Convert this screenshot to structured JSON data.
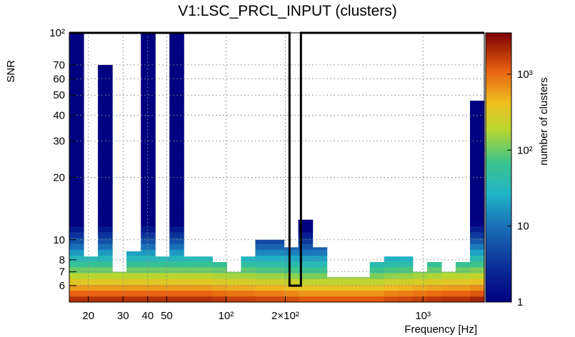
{
  "chart_data": {
    "type": "heatmap",
    "title": "V1:LSC_PRCL_INPUT (clusters)",
    "xlabel": "Frequency [Hz]",
    "ylabel": "SNR",
    "zlabel": "number of clusters",
    "x_scale": "log",
    "y_scale": "log",
    "z_scale": "log",
    "xlim": [
      16,
      2048
    ],
    "ylim": [
      5,
      100
    ],
    "zlim": [
      1,
      3500
    ],
    "grid": true,
    "colormap": "rainbow (dark blue to dark red)",
    "x_ticks": [
      {
        "value": 20,
        "label": "20"
      },
      {
        "value": 30,
        "label": "30"
      },
      {
        "value": 40,
        "label": "40"
      },
      {
        "value": 50,
        "label": "50"
      },
      {
        "value": 100,
        "label": "10²"
      },
      {
        "value": 200,
        "label": "2×10²"
      },
      {
        "value": 1000,
        "label": "10³"
      }
    ],
    "y_ticks": [
      {
        "value": 6,
        "label": "6"
      },
      {
        "value": 7,
        "label": "7"
      },
      {
        "value": 8,
        "label": "8"
      },
      {
        "value": 10,
        "label": "10"
      },
      {
        "value": 20,
        "label": "20"
      },
      {
        "value": 30,
        "label": "30"
      },
      {
        "value": 40,
        "label": "40"
      },
      {
        "value": 50,
        "label": "50"
      },
      {
        "value": 60,
        "label": "60"
      },
      {
        "value": 70,
        "label": "70"
      },
      {
        "value": 100,
        "label": "10²"
      }
    ],
    "z_ticks": [
      {
        "value": 1,
        "label": "1"
      },
      {
        "value": 10,
        "label": "10"
      },
      {
        "value": 100,
        "label": "10²"
      },
      {
        "value": 1000,
        "label": "10³"
      }
    ],
    "columns_snr_max": [
      100,
      8.3,
      70,
      7,
      8.8,
      100,
      8.3,
      100,
      8.3,
      8.3,
      7.8,
      7,
      8.3,
      10,
      10,
      9.2,
      12.5,
      9.2,
      6.6,
      6.6,
      6.6,
      7.8,
      8.3,
      8.3,
      7,
      7.8,
      7,
      7.8,
      47
    ],
    "columns_peak_count": [
      2600,
      2600,
      2600,
      2600,
      2600,
      2600,
      2600,
      2600,
      2600,
      2600,
      2400,
      2200,
      2200,
      2000,
      2000,
      1800,
      1600,
      1600,
      1600,
      1600,
      1600,
      1600,
      1900,
      2000,
      2200,
      2400,
      2600,
      2600,
      3000
    ],
    "overlay_contour": {
      "description": "black outline",
      "points": [
        [
          16,
          100
        ],
        [
          210,
          100
        ],
        [
          210,
          6
        ],
        [
          240,
          6
        ],
        [
          240,
          100
        ],
        [
          2048,
          100
        ]
      ]
    }
  }
}
